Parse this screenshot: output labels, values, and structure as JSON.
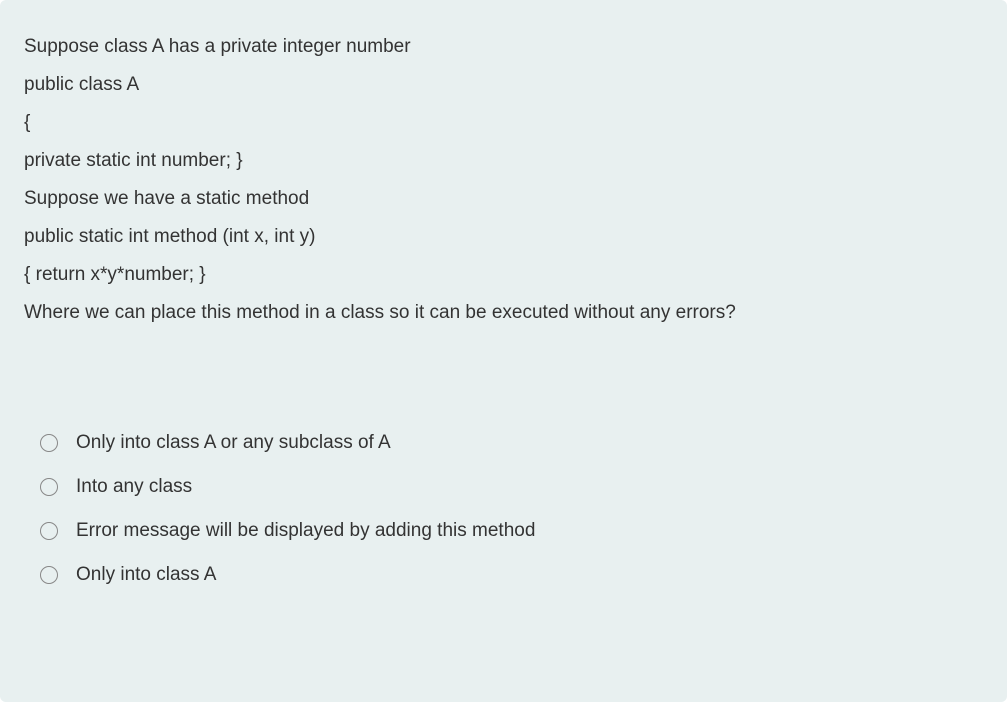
{
  "question": {
    "lines": [
      "Suppose class A has a private integer number",
      "public class A",
      "{",
      "private static  int  number; }",
      "Suppose we have a static method",
      "public static int method (int x, int y)",
      "{   return x*y*number; }",
      "Where we can place this method in a class so it can be executed without any errors?"
    ]
  },
  "options": [
    {
      "label": "Only into class A or any subclass of A"
    },
    {
      "label": "Into any class"
    },
    {
      "label": "Error message will be displayed by adding this method"
    },
    {
      "label": "Only into class A"
    }
  ],
  "colors": {
    "background": "#e8f0f0",
    "text": "#333333",
    "radio_border": "#888888"
  },
  "typography": {
    "font_family": "Segoe UI",
    "question_fontsize": 19,
    "option_fontsize": 19
  }
}
